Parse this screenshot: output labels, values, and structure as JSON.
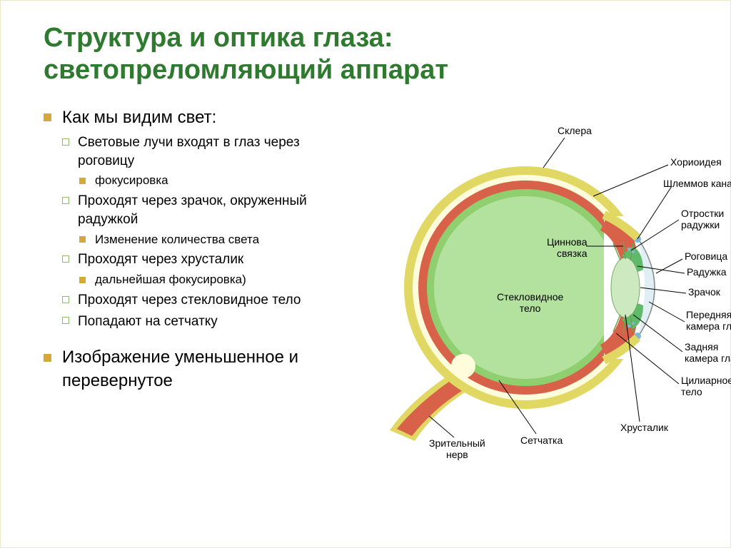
{
  "colors": {
    "title": "#2e7a2e",
    "bullet_l1": "#d4a93a",
    "bullet_l2": "#8fb96e",
    "bullet_l3": "#d4a93a",
    "sclera_outer": "#e0d862",
    "sclera_inner": "#fffcdc",
    "choroid": "#d8614a",
    "retina": "#8fcf6f",
    "vitreous": "#b3e29f",
    "lens": "#cde9c0",
    "iris": "#5fbb6a",
    "cornea": "#dfeff4",
    "nerve": "#e0d862",
    "canal": "#7fb7d8",
    "zonule": "#6fa24d"
  },
  "title_line1": "Структура и оптика глаза:",
  "title_line2": "светопреломляющий аппарат",
  "bullets": {
    "l1a": "Как мы видим свет:",
    "l2a": "Световые лучи входят в глаз через роговицу",
    "l3a": "фокусировка",
    "l2b": "Проходят через зрачок, окруженный радужкой",
    "l3b": "Изменение количества света",
    "l2c": "Проходят через хрусталик",
    "l3c": "дальнейшая фокусировка)",
    "l2d": "Проходят через стекловидное тело",
    "l2e": "Попадают на сетчатку",
    "l1b": "Изображение уменьшенное и перевернутое"
  },
  "diagram_labels": {
    "sclera": "Склера",
    "choroid": "Хориоидея",
    "schlemm": "Шлеммов канал",
    "iris_proc": "Отростки\nрадужки",
    "zonule": "Циннова\nсвязка",
    "cornea": "Роговица",
    "iris": "Радужка",
    "pupil": "Зрачок",
    "ant_chamber": "Передняя\nкамера глаза",
    "post_chamber": "Задняя\nкамера глаза",
    "ciliary": "Цилиарное\nтело",
    "lens": "Хрусталик",
    "vitreous": "Стекловидное\nтело",
    "optic_nerve": "Зрительный\nнерв",
    "retina": "Сетчатка"
  }
}
